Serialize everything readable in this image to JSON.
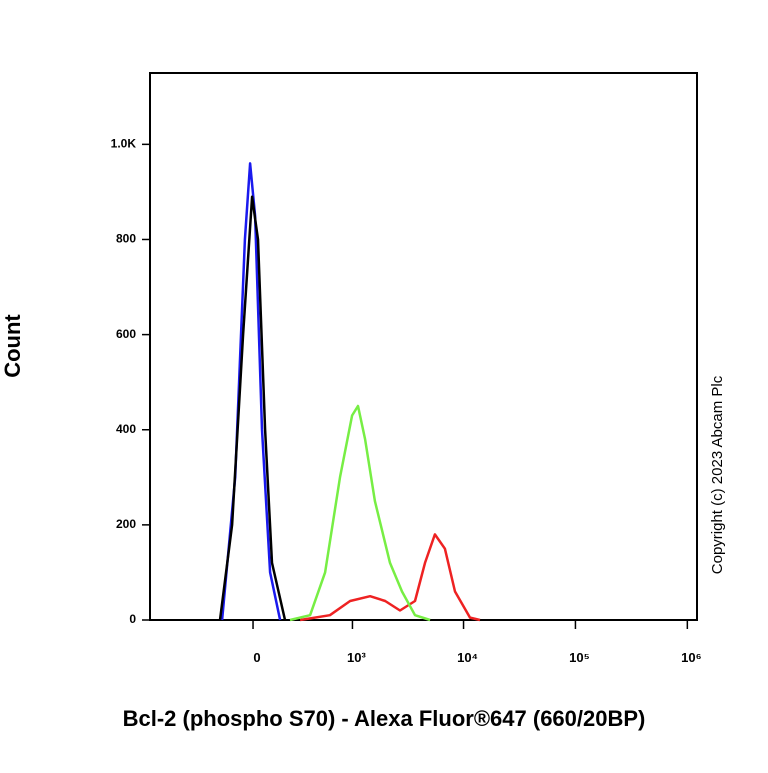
{
  "chart_data": {
    "type": "line",
    "x_label": "Bcl-2 (phospho S70) - Alexa Fluor®647 (660/20BP)",
    "y_label": "Count",
    "annotation": "Copyright (c) 2023 Abcam Plc",
    "xscale": "arcsinh",
    "xlim": [
      -1080,
      1220000
    ],
    "xticks": [
      0,
      {
        "value": 1000,
        "label": "10³"
      },
      {
        "value": 10000,
        "label": "10⁴"
      },
      {
        "value": 100000,
        "label": "10⁵"
      },
      {
        "value": 1000000,
        "label": "10⁶"
      }
    ],
    "ylim": [
      0,
      1150
    ],
    "yticks": [
      0,
      200,
      400,
      600,
      800,
      {
        "value": 1000,
        "label": "1.0K"
      }
    ],
    "series": [
      {
        "color": "#ee2222",
        "x": [
          296,
          613,
          952,
          1449,
          1986,
          2701,
          3682,
          4524,
          5549,
          6812,
          8390,
          11414,
          14044
        ],
        "values": [
          0,
          10,
          40,
          50,
          40,
          20,
          40,
          120,
          180,
          150,
          60,
          5,
          0
        ]
      },
      {
        "color": "#77ee44",
        "x": [
          220,
          385,
          550,
          765,
          992,
          1126,
          1305,
          1605,
          2196,
          2814,
          3682,
          5023
        ],
        "values": [
          0,
          10,
          100,
          300,
          430,
          450,
          380,
          250,
          120,
          60,
          10,
          0
        ]
      },
      {
        "color": "#1a1aee",
        "x": [
          -179,
          -99,
          -44,
          -16,
          11,
          49,
          94,
          154
        ],
        "values": [
          0,
          300,
          800,
          960,
          850,
          400,
          100,
          0
        ]
      },
      {
        "color": "#000000",
        "x": [
          -193,
          -117,
          -54,
          -5,
          27,
          66,
          105,
          186
        ],
        "values": [
          0,
          200,
          600,
          890,
          800,
          400,
          120,
          0
        ]
      }
    ]
  }
}
